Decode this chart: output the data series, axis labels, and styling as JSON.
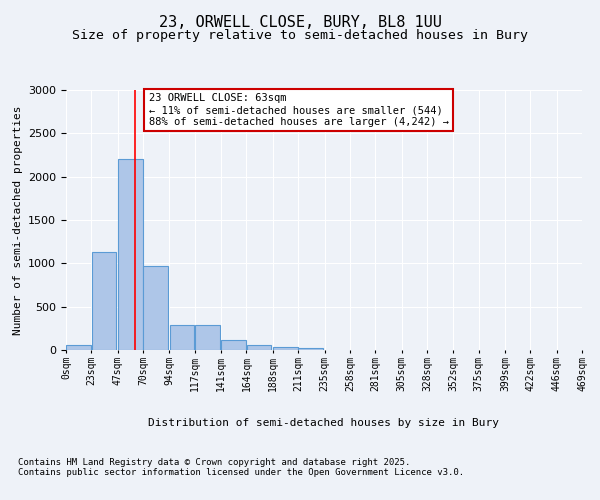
{
  "title_line1": "23, ORWELL CLOSE, BURY, BL8 1UU",
  "title_line2": "Size of property relative to semi-detached houses in Bury",
  "xlabel": "Distribution of semi-detached houses by size in Bury",
  "ylabel": "Number of semi-detached properties",
  "bin_labels": [
    "0sqm",
    "23sqm",
    "47sqm",
    "70sqm",
    "94sqm",
    "117sqm",
    "141sqm",
    "164sqm",
    "188sqm",
    "211sqm",
    "235sqm",
    "258sqm",
    "281sqm",
    "305sqm",
    "328sqm",
    "352sqm",
    "375sqm",
    "399sqm",
    "422sqm",
    "446sqm",
    "469sqm"
  ],
  "bin_edges": [
    0,
    23,
    47,
    70,
    94,
    117,
    141,
    164,
    188,
    211,
    235,
    258,
    281,
    305,
    328,
    352,
    375,
    399,
    422,
    446,
    469
  ],
  "bar_values": [
    60,
    1130,
    2200,
    970,
    285,
    285,
    110,
    55,
    30,
    20,
    0,
    0,
    0,
    0,
    0,
    0,
    0,
    0,
    0,
    0
  ],
  "bar_color": "#aec6e8",
  "bar_edge_color": "#5b9bd5",
  "property_size": 63,
  "red_line_x": 63,
  "annotation_text": "23 ORWELL CLOSE: 63sqm\n← 11% of semi-detached houses are smaller (544)\n88% of semi-detached houses are larger (4,242) →",
  "annotation_box_color": "#ffffff",
  "annotation_box_edge_color": "#cc0000",
  "footnote_line1": "Contains HM Land Registry data © Crown copyright and database right 2025.",
  "footnote_line2": "Contains public sector information licensed under the Open Government Licence v3.0.",
  "ylim": [
    0,
    3000
  ],
  "background_color": "#eef2f8",
  "plot_bg_color": "#eef2f8",
  "grid_color": "#ffffff",
  "title_fontsize": 11,
  "subtitle_fontsize": 9.5,
  "axis_label_fontsize": 8,
  "tick_fontsize": 7,
  "annotation_fontsize": 7.5,
  "footnote_fontsize": 6.5
}
